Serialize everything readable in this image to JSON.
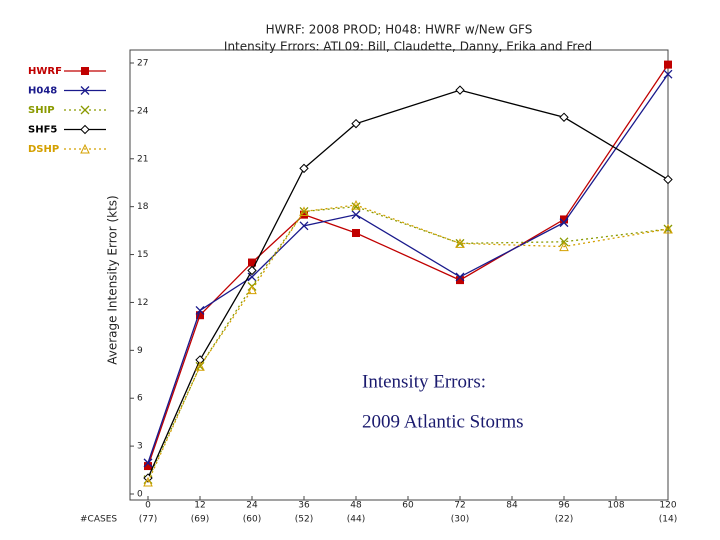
{
  "chart_data": {
    "type": "line",
    "title": "HWRF: 2008 PROD; H048: HWRF w/New GFS",
    "subtitle": "Intensity Errors: ATL09: Bill, Claudette, Danny, Erika and Fred",
    "y_label": "Average Intensity Error (kts)",
    "annotations": [
      "Intensity Errors:",
      "2009 Atlantic Storms"
    ],
    "x": [
      0,
      12,
      24,
      36,
      48,
      72,
      96,
      120
    ],
    "xlim": [
      0,
      120
    ],
    "xticks": [
      0,
      12,
      24,
      36,
      48,
      60,
      72,
      84,
      96,
      108,
      120
    ],
    "ylim": [
      0,
      27
    ],
    "yticks": [
      0,
      3,
      6,
      9,
      12,
      15,
      18,
      21,
      24,
      27
    ],
    "cases_label": "#CASES",
    "cases": [
      "(77)",
      "(69)",
      "(60)",
      "(52)",
      "(44)",
      "(30)",
      "(22)",
      "(14)"
    ],
    "legend": "upper-left",
    "series": [
      {
        "name": "HWRF",
        "color": "#c00000",
        "marker": "square",
        "dash": "solid",
        "values": [
          1.75,
          11.2,
          14.5,
          17.5,
          16.35,
          13.4,
          17.2,
          26.9
        ]
      },
      {
        "name": "H048",
        "color": "#1a1a8c",
        "marker": "x",
        "dash": "solid",
        "values": [
          1.95,
          11.5,
          13.6,
          16.8,
          17.5,
          13.6,
          17.0,
          26.3
        ]
      },
      {
        "name": "SHIP",
        "color": "#8a9a00",
        "marker": "x",
        "dash": "dotted",
        "values": [
          0.9,
          8.0,
          13.0,
          17.7,
          18.0,
          15.7,
          15.8,
          16.6
        ]
      },
      {
        "name": "SHF5",
        "color": "#000000",
        "marker": "diamond",
        "dash": "solid",
        "values": [
          1.0,
          8.4,
          14.0,
          20.4,
          23.2,
          25.3,
          23.6,
          19.7
        ]
      },
      {
        "name": "DSHP",
        "color": "#d4a000",
        "marker": "triangle",
        "dash": "dotted",
        "values": [
          0.75,
          8.0,
          12.8,
          17.7,
          18.1,
          15.7,
          15.5,
          16.6
        ]
      }
    ]
  }
}
